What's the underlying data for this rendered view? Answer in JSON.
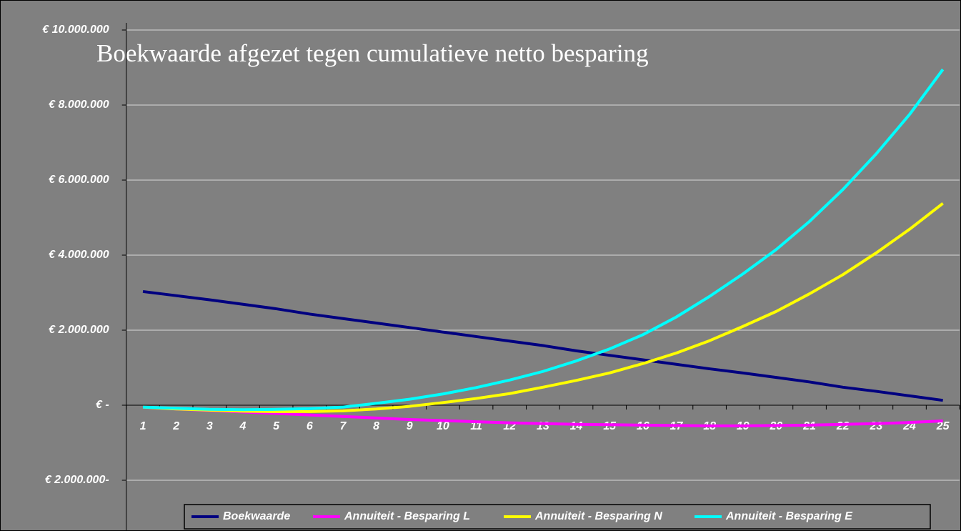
{
  "chart_data": {
    "type": "line",
    "title": "Boekwaarde afgezet tegen cumulatieve netto besparing",
    "categories": [
      "1",
      "2",
      "3",
      "4",
      "5",
      "6",
      "7",
      "8",
      "9",
      "10",
      "11",
      "12",
      "13",
      "14",
      "15",
      "16",
      "17",
      "18",
      "19",
      "20",
      "21",
      "22",
      "23",
      "24",
      "25"
    ],
    "series": [
      {
        "name": "Boekwaarde",
        "color": "#000080",
        "values": [
          3030000,
          2920000,
          2810000,
          2690000,
          2570000,
          2430000,
          2310000,
          2190000,
          2070000,
          1950000,
          1830000,
          1710000,
          1590000,
          1450000,
          1330000,
          1210000,
          1090000,
          970000,
          860000,
          740000,
          620000,
          480000,
          370000,
          250000,
          130000
        ]
      },
      {
        "name": "Annuiteit - Besparing L",
        "color": "#ff00ff",
        "values": [
          -50000,
          -100000,
          -140000,
          -180000,
          -220000,
          -260000,
          -300000,
          -340000,
          -380000,
          -410000,
          -440000,
          -470000,
          -490000,
          -510000,
          -520000,
          -530000,
          -540000,
          -550000,
          -550000,
          -540000,
          -530000,
          -510000,
          -490000,
          -460000,
          -420000
        ]
      },
      {
        "name": "Annuiteit - Besparing N",
        "color": "#ffff00",
        "values": [
          -50000,
          -100000,
          -130000,
          -160000,
          -170000,
          -170000,
          -150000,
          -100000,
          -30000,
          70000,
          180000,
          310000,
          480000,
          660000,
          860000,
          1110000,
          1390000,
          1720000,
          2100000,
          2500000,
          2970000,
          3480000,
          4060000,
          4690000,
          5380000
        ]
      },
      {
        "name": "Annuiteit - Besparing E",
        "color": "#00ffff",
        "values": [
          -50000,
          -80000,
          -110000,
          -120000,
          -110000,
          -90000,
          -50000,
          50000,
          160000,
          300000,
          470000,
          670000,
          900000,
          1180000,
          1500000,
          1880000,
          2350000,
          2900000,
          3500000,
          4150000,
          4900000,
          5750000,
          6700000,
          7750000,
          8950000
        ]
      }
    ],
    "ylim": [
      -2000000,
      10000000
    ],
    "yticks": [
      {
        "value": -2000000,
        "label": "€ 2.000.000-"
      },
      {
        "value": 0,
        "label": "€ -"
      },
      {
        "value": 2000000,
        "label": "€ 2.000.000"
      },
      {
        "value": 4000000,
        "label": "€ 4.000.000"
      },
      {
        "value": 6000000,
        "label": "€ 6.000.000"
      },
      {
        "value": 8000000,
        "label": "€ 8.000.000"
      },
      {
        "value": 10000000,
        "label": "€ 10.000.000"
      }
    ],
    "grid": true
  }
}
